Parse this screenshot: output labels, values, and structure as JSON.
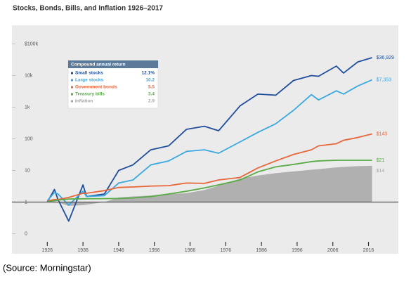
{
  "chart_data": {
    "type": "line",
    "title": "Stocks, Bonds, Bills, and Inflation 1926–2017",
    "source": "(Source: Morningstar)",
    "legend_title": "Compound annual return",
    "log_scale": true,
    "grid": false,
    "baseline": 1,
    "xlim": [
      1922,
      2022
    ],
    "xticks": [
      1926,
      1936,
      1946,
      1956,
      1966,
      1976,
      1986,
      1996,
      2006,
      2016
    ],
    "ylim": [
      0.05,
      200000
    ],
    "yticks": [
      {
        "value": 100000,
        "label": "$100k"
      },
      {
        "value": 10000,
        "label": "10k"
      },
      {
        "value": 1000,
        "label": "1k"
      },
      100,
      10,
      1,
      {
        "value": 0.1,
        "label": "0"
      }
    ],
    "x": [
      1926,
      1928,
      1929,
      1932,
      1936,
      1937,
      1942,
      1946,
      1950,
      1955,
      1960,
      1965,
      1970,
      1974,
      1980,
      1985,
      1990,
      1995,
      2000,
      2002,
      2007,
      2009,
      2013,
      2017
    ],
    "series": [
      {
        "name": "Small stocks",
        "annual_return": "12.1%",
        "color": "#1f4e9c",
        "values": [
          1.0,
          2.5,
          1.2,
          0.25,
          3.5,
          1.5,
          1.8,
          10,
          15,
          45,
          60,
          200,
          250,
          180,
          1100,
          2600,
          2400,
          7000,
          10000,
          9500,
          20000,
          12000,
          27000,
          36929
        ],
        "value_labels": [
          null,
          null,
          null,
          null,
          null,
          null,
          null,
          null,
          null,
          null,
          null,
          null,
          null,
          null,
          null,
          null,
          null,
          null,
          null,
          null,
          null,
          null,
          null,
          "$36,929"
        ]
      },
      {
        "name": "Large stocks",
        "annual_return": "10.2",
        "color": "#3aa8e0",
        "values": [
          1.1,
          2.0,
          1.8,
          0.8,
          2.2,
          1.5,
          1.6,
          4,
          5,
          15,
          20,
          40,
          45,
          35,
          80,
          160,
          300,
          800,
          2500,
          1700,
          3300,
          2600,
          4700,
          7353
        ],
        "value_labels": [
          null,
          null,
          null,
          null,
          null,
          null,
          null,
          null,
          null,
          null,
          null,
          null,
          null,
          null,
          null,
          null,
          null,
          null,
          null,
          null,
          null,
          null,
          null,
          "$7,353"
        ]
      },
      {
        "name": "Government bonds",
        "annual_return": "5.5",
        "color": "#e8663a",
        "values": [
          1.08,
          1.2,
          1.2,
          1.4,
          1.9,
          1.9,
          2.3,
          2.9,
          3,
          3.2,
          3.3,
          4,
          3.9,
          5,
          6,
          12,
          20,
          32,
          45,
          60,
          70,
          90,
          110,
          143
        ],
        "value_labels": [
          null,
          null,
          null,
          null,
          null,
          null,
          null,
          null,
          null,
          null,
          null,
          null,
          null,
          null,
          null,
          null,
          null,
          null,
          null,
          null,
          null,
          null,
          null,
          "$143"
        ]
      },
      {
        "name": "Treasury bills",
        "annual_return": "3.4",
        "color": "#5aaa46",
        "values": [
          1.03,
          1.1,
          1.15,
          1.25,
          1.27,
          1.27,
          1.28,
          1.3,
          1.35,
          1.5,
          1.8,
          2.2,
          2.8,
          3.5,
          5,
          9,
          13,
          15.5,
          19,
          20,
          21,
          21,
          21,
          21
        ],
        "value_labels": [
          null,
          null,
          null,
          null,
          null,
          null,
          null,
          null,
          null,
          null,
          null,
          null,
          null,
          null,
          null,
          null,
          null,
          null,
          null,
          null,
          null,
          null,
          null,
          "$21"
        ]
      },
      {
        "name": "Inflation",
        "annual_return": "2.9",
        "color": "#a6a6a6",
        "area": true,
        "values": [
          0.99,
          0.97,
          0.97,
          0.76,
          0.8,
          0.83,
          1.0,
          1.4,
          1.5,
          1.6,
          1.8,
          1.9,
          2.4,
          3.3,
          5.5,
          6.9,
          8.2,
          9.3,
          10.5,
          11,
          12.5,
          13,
          13.7,
          14
        ],
        "value_labels": [
          null,
          null,
          null,
          null,
          null,
          null,
          null,
          null,
          null,
          null,
          null,
          null,
          null,
          null,
          null,
          null,
          null,
          null,
          null,
          null,
          null,
          null,
          null,
          "$14"
        ]
      }
    ]
  }
}
